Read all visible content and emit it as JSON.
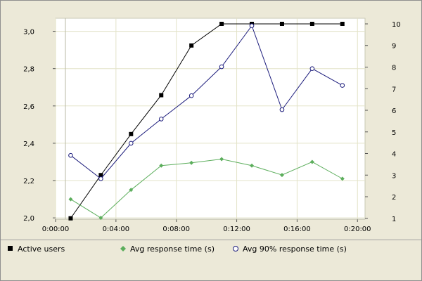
{
  "chart_data": {
    "type": "line",
    "x": [
      "0:01:00",
      "0:03:00",
      "0:05:00",
      "0:07:00",
      "0:09:00",
      "0:11:00",
      "0:13:00",
      "0:15:00",
      "0:17:00",
      "0:19:00"
    ],
    "x_ticks": [
      "0:00:00",
      "0:04:00",
      "0:08:00",
      "0:12:00",
      "0:16:00",
      "0:20:00"
    ],
    "xlim": [
      "0:00:00",
      "0:20:30"
    ],
    "y_left": {
      "ticks": [
        "2,0",
        "2,2",
        "2,4",
        "2,6",
        "2,8",
        "3,0"
      ],
      "ylim": [
        1.993,
        3.07
      ]
    },
    "y_right": {
      "ticks": [
        "1",
        "2",
        "3",
        "4",
        "5",
        "6",
        "7",
        "8",
        "9",
        "10"
      ],
      "ylim": [
        0.96,
        10.26
      ]
    },
    "grid": true,
    "legend_position": "bottom",
    "series": [
      {
        "name": "Active users",
        "axis": "right",
        "color": "#000000",
        "marker": "filled-square",
        "values": [
          1,
          3,
          4.9,
          6.7,
          9,
          10,
          10,
          10,
          10,
          10
        ]
      },
      {
        "name": "Avg response time (s)",
        "axis": "left",
        "color": "#5cae5c",
        "marker": "diamond",
        "values": [
          2.1,
          2.0,
          2.15,
          2.28,
          2.295,
          2.315,
          2.28,
          2.23,
          2.3,
          2.21
        ]
      },
      {
        "name": "Avg 90% response time (s)",
        "axis": "left",
        "color": "#1c1c7c",
        "marker": "hollow-circle",
        "values": [
          2.335,
          2.21,
          2.4,
          2.53,
          2.655,
          2.81,
          3.03,
          2.58,
          2.8,
          2.71
        ]
      }
    ]
  },
  "legend": {
    "items": [
      {
        "label": "Active users",
        "icon": "filled-square-icon"
      },
      {
        "label": "Avg response time (s)",
        "icon": "diamond-icon"
      },
      {
        "label": "Avg 90% response time (s)",
        "icon": "hollow-circle-icon"
      }
    ]
  },
  "colors": {
    "background": "#ece9d8",
    "plot_background": "#ffffff",
    "grid": "#e3e3c8"
  }
}
